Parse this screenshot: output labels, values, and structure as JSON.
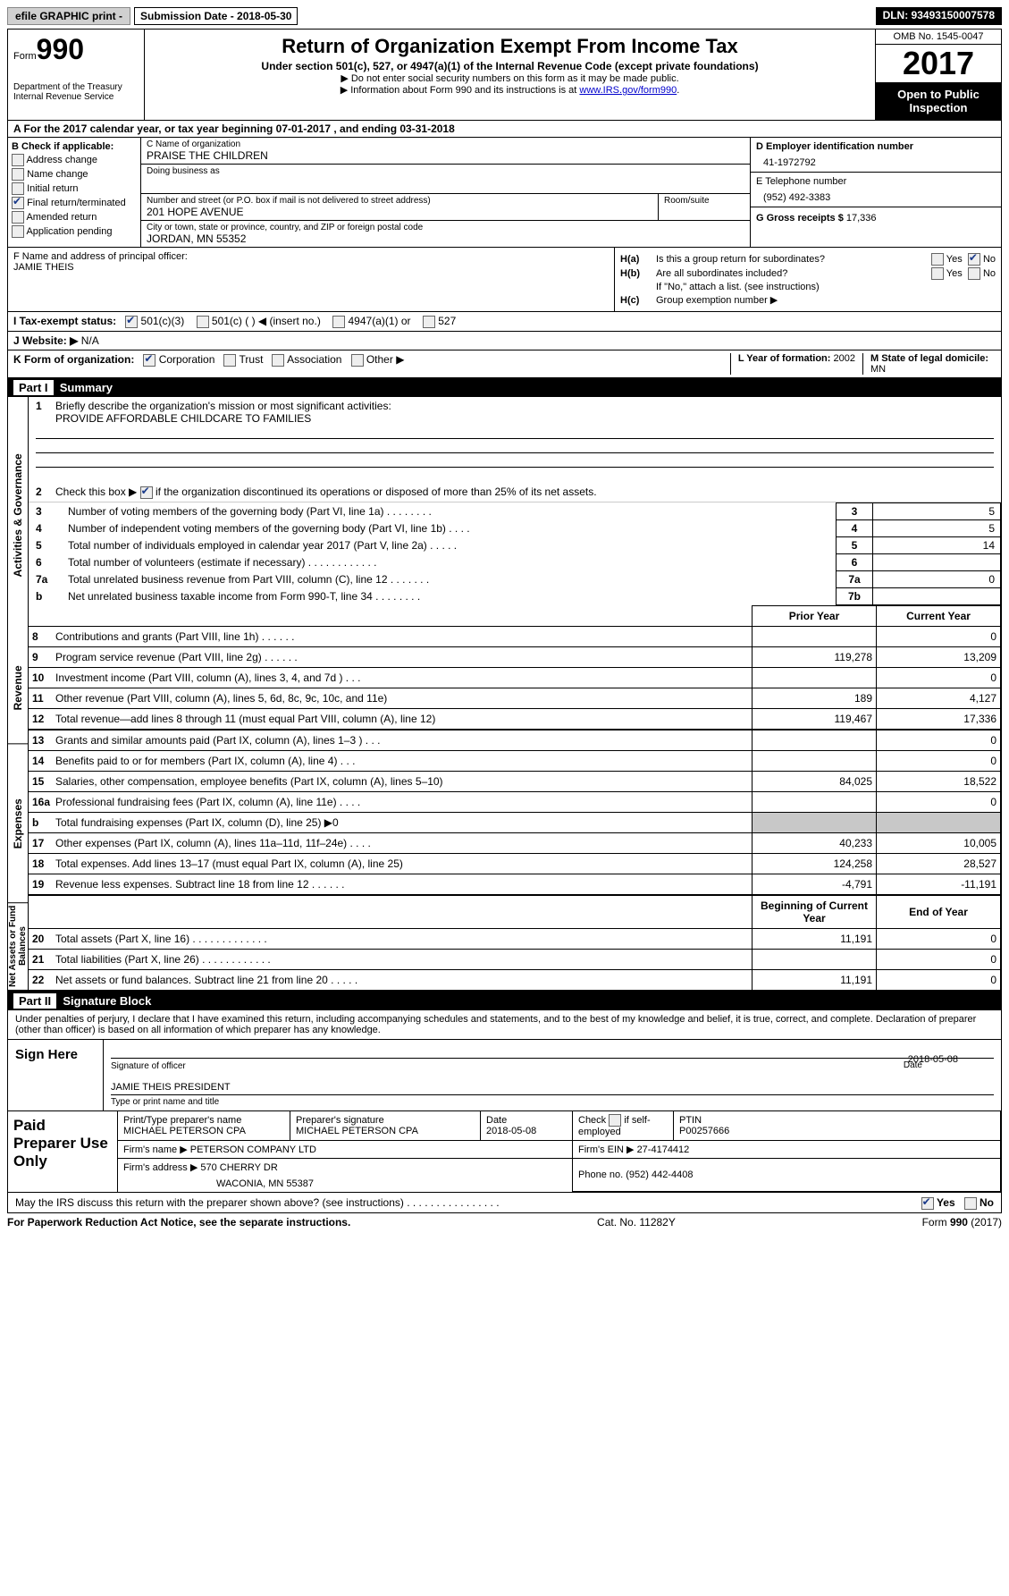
{
  "topbar": {
    "efile": "efile GRAPHIC print -",
    "submission_label": "Submission Date - 2018-05-30",
    "dln": "DLN: 93493150007578"
  },
  "header": {
    "form_label": "Form",
    "form_no": "990",
    "dept": "Department of the Treasury",
    "irs": "Internal Revenue Service",
    "title": "Return of Organization Exempt From Income Tax",
    "sub": "Under section 501(c), 527, or 4947(a)(1) of the Internal Revenue Code (except private foundations)",
    "note1": "▶ Do not enter social security numbers on this form as it may be made public.",
    "note2": "▶ Information about Form 990 and its instructions is at ",
    "link": "www.IRS.gov/form990",
    "omb": "OMB No. 1545-0047",
    "year": "2017",
    "inspection": "Open to Public Inspection"
  },
  "line_a": "A   For the 2017 calendar year, or tax year beginning 07-01-2017   , and ending 03-31-2018",
  "b": {
    "label": "B Check if applicable:",
    "addr": "Address change",
    "name": "Name change",
    "initial": "Initial return",
    "final": "Final return/terminated",
    "amended": "Amended return",
    "app": "Application pending"
  },
  "c": {
    "name_label": "C Name of organization",
    "name": "PRAISE THE CHILDREN",
    "dba_label": "Doing business as",
    "addr_label": "Number and street (or P.O. box if mail is not delivered to street address)",
    "room_label": "Room/suite",
    "addr": "201 HOPE AVENUE",
    "city_label": "City or town, state or province, country, and ZIP or foreign postal code",
    "city": "JORDAN, MN  55352"
  },
  "d": {
    "ein_label": "D Employer identification number",
    "ein": "41-1972792",
    "tel_label": "E Telephone number",
    "tel": "(952) 492-3383",
    "gross_label": "G Gross receipts $ ",
    "gross": "17,336"
  },
  "f": {
    "label": "F  Name and address of principal officer:",
    "value": "JAMIE THEIS"
  },
  "h": {
    "a_label": "H(a)",
    "a_text": "Is this a group return for subordinates?",
    "b_label": "H(b)",
    "b_text": "Are all subordinates included?",
    "b_note": "If \"No,\" attach a list. (see instructions)",
    "c_label": "H(c)",
    "c_text": "Group exemption number ▶",
    "yes": "Yes",
    "no": "No"
  },
  "i": {
    "label": "I   Tax-exempt status:",
    "o1": "501(c)(3)",
    "o2": "501(c) (   ) ◀ (insert no.)",
    "o3": "4947(a)(1) or",
    "o4": "527"
  },
  "j": {
    "label": "J   Website: ▶",
    "value": "N/A"
  },
  "k": {
    "label": "K Form of organization:",
    "corp": "Corporation",
    "trust": "Trust",
    "assoc": "Association",
    "other": "Other ▶",
    "l_label": "L Year of formation: ",
    "l_val": "2002",
    "m_label": "M State of legal domicile:",
    "m_val": "MN"
  },
  "part1": {
    "header": "Part I    Summary",
    "vlabels": [
      "Activities & Governance",
      "Revenue",
      "Expenses",
      "Net Assets or Fund Balances"
    ],
    "q1_num": "1",
    "q1": "Briefly describe the organization's mission or most significant activities:",
    "q1_val": "PROVIDE AFFORDABLE CHILDCARE TO FAMILIES",
    "q2_num": "2",
    "q2": "Check this box ▶",
    "q2_tail": " if the organization discontinued its operations or disposed of more than 25% of its net assets.",
    "rows_top": [
      {
        "n": "3",
        "t": "Number of voting members of the governing body (Part VI, line 1a)   .   .   .   .   .   .   .   .",
        "ln": "3",
        "v": "5"
      },
      {
        "n": "4",
        "t": "Number of independent voting members of the governing body (Part VI, line 1b)   .   .   .   .",
        "ln": "4",
        "v": "5"
      },
      {
        "n": "5",
        "t": "Total number of individuals employed in calendar year 2017 (Part V, line 2a)   .   .   .   .   .",
        "ln": "5",
        "v": "14"
      },
      {
        "n": "6",
        "t": "Total number of volunteers (estimate if necessary)   .   .   .   .   .   .   .   .   .   .   .   .",
        "ln": "6",
        "v": ""
      },
      {
        "n": "7a",
        "t": "Total unrelated business revenue from Part VIII, column (C), line 12   .   .   .   .   .   .   .",
        "ln": "7a",
        "v": "0"
      },
      {
        "n": "b",
        "t": "Net unrelated business taxable income from Form 990-T, line 34   .   .   .   .   .   .   .   .",
        "ln": "7b",
        "v": ""
      }
    ],
    "col_prior": "Prior Year",
    "col_current": "Current Year",
    "revenue": [
      {
        "n": "8",
        "t": "Contributions and grants (Part VIII, line 1h)   .   .   .   .   .   .",
        "p": "",
        "c": "0"
      },
      {
        "n": "9",
        "t": "Program service revenue (Part VIII, line 2g)   .   .   .   .   .   .",
        "p": "119,278",
        "c": "13,209"
      },
      {
        "n": "10",
        "t": "Investment income (Part VIII, column (A), lines 3, 4, and 7d )   .   .   .",
        "p": "",
        "c": "0"
      },
      {
        "n": "11",
        "t": "Other revenue (Part VIII, column (A), lines 5, 6d, 8c, 9c, 10c, and 11e)",
        "p": "189",
        "c": "4,127"
      },
      {
        "n": "12",
        "t": "Total revenue—add lines 8 through 11 (must equal Part VIII, column (A), line 12)",
        "p": "119,467",
        "c": "17,336"
      }
    ],
    "expenses": [
      {
        "n": "13",
        "t": "Grants and similar amounts paid (Part IX, column (A), lines 1–3 )   .   .   .",
        "p": "",
        "c": "0"
      },
      {
        "n": "14",
        "t": "Benefits paid to or for members (Part IX, column (A), line 4)   .   .   .",
        "p": "",
        "c": "0"
      },
      {
        "n": "15",
        "t": "Salaries, other compensation, employee benefits (Part IX, column (A), lines 5–10)",
        "p": "84,025",
        "c": "18,522"
      },
      {
        "n": "16a",
        "t": "Professional fundraising fees (Part IX, column (A), line 11e)   .   .   .   .",
        "p": "",
        "c": "0"
      },
      {
        "n": "b",
        "t": "Total fundraising expenses (Part IX, column (D), line 25) ▶0",
        "p": "shade",
        "c": "shade"
      },
      {
        "n": "17",
        "t": "Other expenses (Part IX, column (A), lines 11a–11d, 11f–24e)   .   .   .   .",
        "p": "40,233",
        "c": "10,005"
      },
      {
        "n": "18",
        "t": "Total expenses. Add lines 13–17 (must equal Part IX, column (A), line 25)",
        "p": "124,258",
        "c": "28,527"
      },
      {
        "n": "19",
        "t": "Revenue less expenses. Subtract line 18 from line 12   .   .   .   .   .   .",
        "p": "-4,791",
        "c": "-11,191"
      }
    ],
    "col_begin": "Beginning of Current Year",
    "col_end": "End of Year",
    "balances": [
      {
        "n": "20",
        "t": "Total assets (Part X, line 16)  .   .   .   .   .   .   .   .   .   .   .   .   .",
        "p": "11,191",
        "c": "0"
      },
      {
        "n": "21",
        "t": "Total liabilities (Part X, line 26)  .   .   .   .   .   .   .   .   .   .   .   .",
        "p": "",
        "c": "0"
      },
      {
        "n": "22",
        "t": "Net assets or fund balances. Subtract line 21 from line 20 .   .   .   .   .",
        "p": "11,191",
        "c": "0"
      }
    ]
  },
  "part2": {
    "header": "Part II    Signature Block",
    "text": "Under penalties of perjury, I declare that I have examined this return, including accompanying schedules and statements, and to the best of my knowledge and belief, it is true, correct, and complete. Declaration of preparer (other than officer) is based on all information of which preparer has any knowledge.",
    "sign_here": "Sign Here",
    "sig_caption": "Signature of officer",
    "sig_date": "2018-05-08",
    "date_caption": "Date",
    "name": "JAMIE THEIS PRESIDENT",
    "name_caption": "Type or print name and title",
    "paid": "Paid Preparer Use Only",
    "prep_name_label": "Print/Type preparer's name",
    "prep_name": "MICHAEL PETERSON CPA",
    "prep_sig_label": "Preparer's signature",
    "prep_sig": "MICHAEL PETERSON CPA",
    "prep_date_label": "Date",
    "prep_date": "2018-05-08",
    "check_label": "Check",
    "check_tail": "if self-employed",
    "ptin_label": "PTIN",
    "ptin": "P00257666",
    "firm_name_label": "Firm's name      ▶ ",
    "firm_name": "PETERSON COMPANY LTD",
    "firm_ein_label": "Firm's EIN ▶ ",
    "firm_ein": "27-4174412",
    "firm_addr_label": "Firm's address ▶ ",
    "firm_addr": "570 CHERRY DR",
    "firm_city": "WACONIA, MN  55387",
    "phone_label": "Phone no. ",
    "phone": "(952) 442-4408",
    "discuss": "May the IRS discuss this return with the preparer shown above? (see instructions)   .   .   .   .   .   .   .   .   .   .   .   .   .   .   .   .",
    "yes": "Yes",
    "no": "No"
  },
  "footer": {
    "l": "For Paperwork Reduction Act Notice, see the separate instructions.",
    "c": "Cat. No. 11282Y",
    "r": "Form 990 (2017)"
  }
}
